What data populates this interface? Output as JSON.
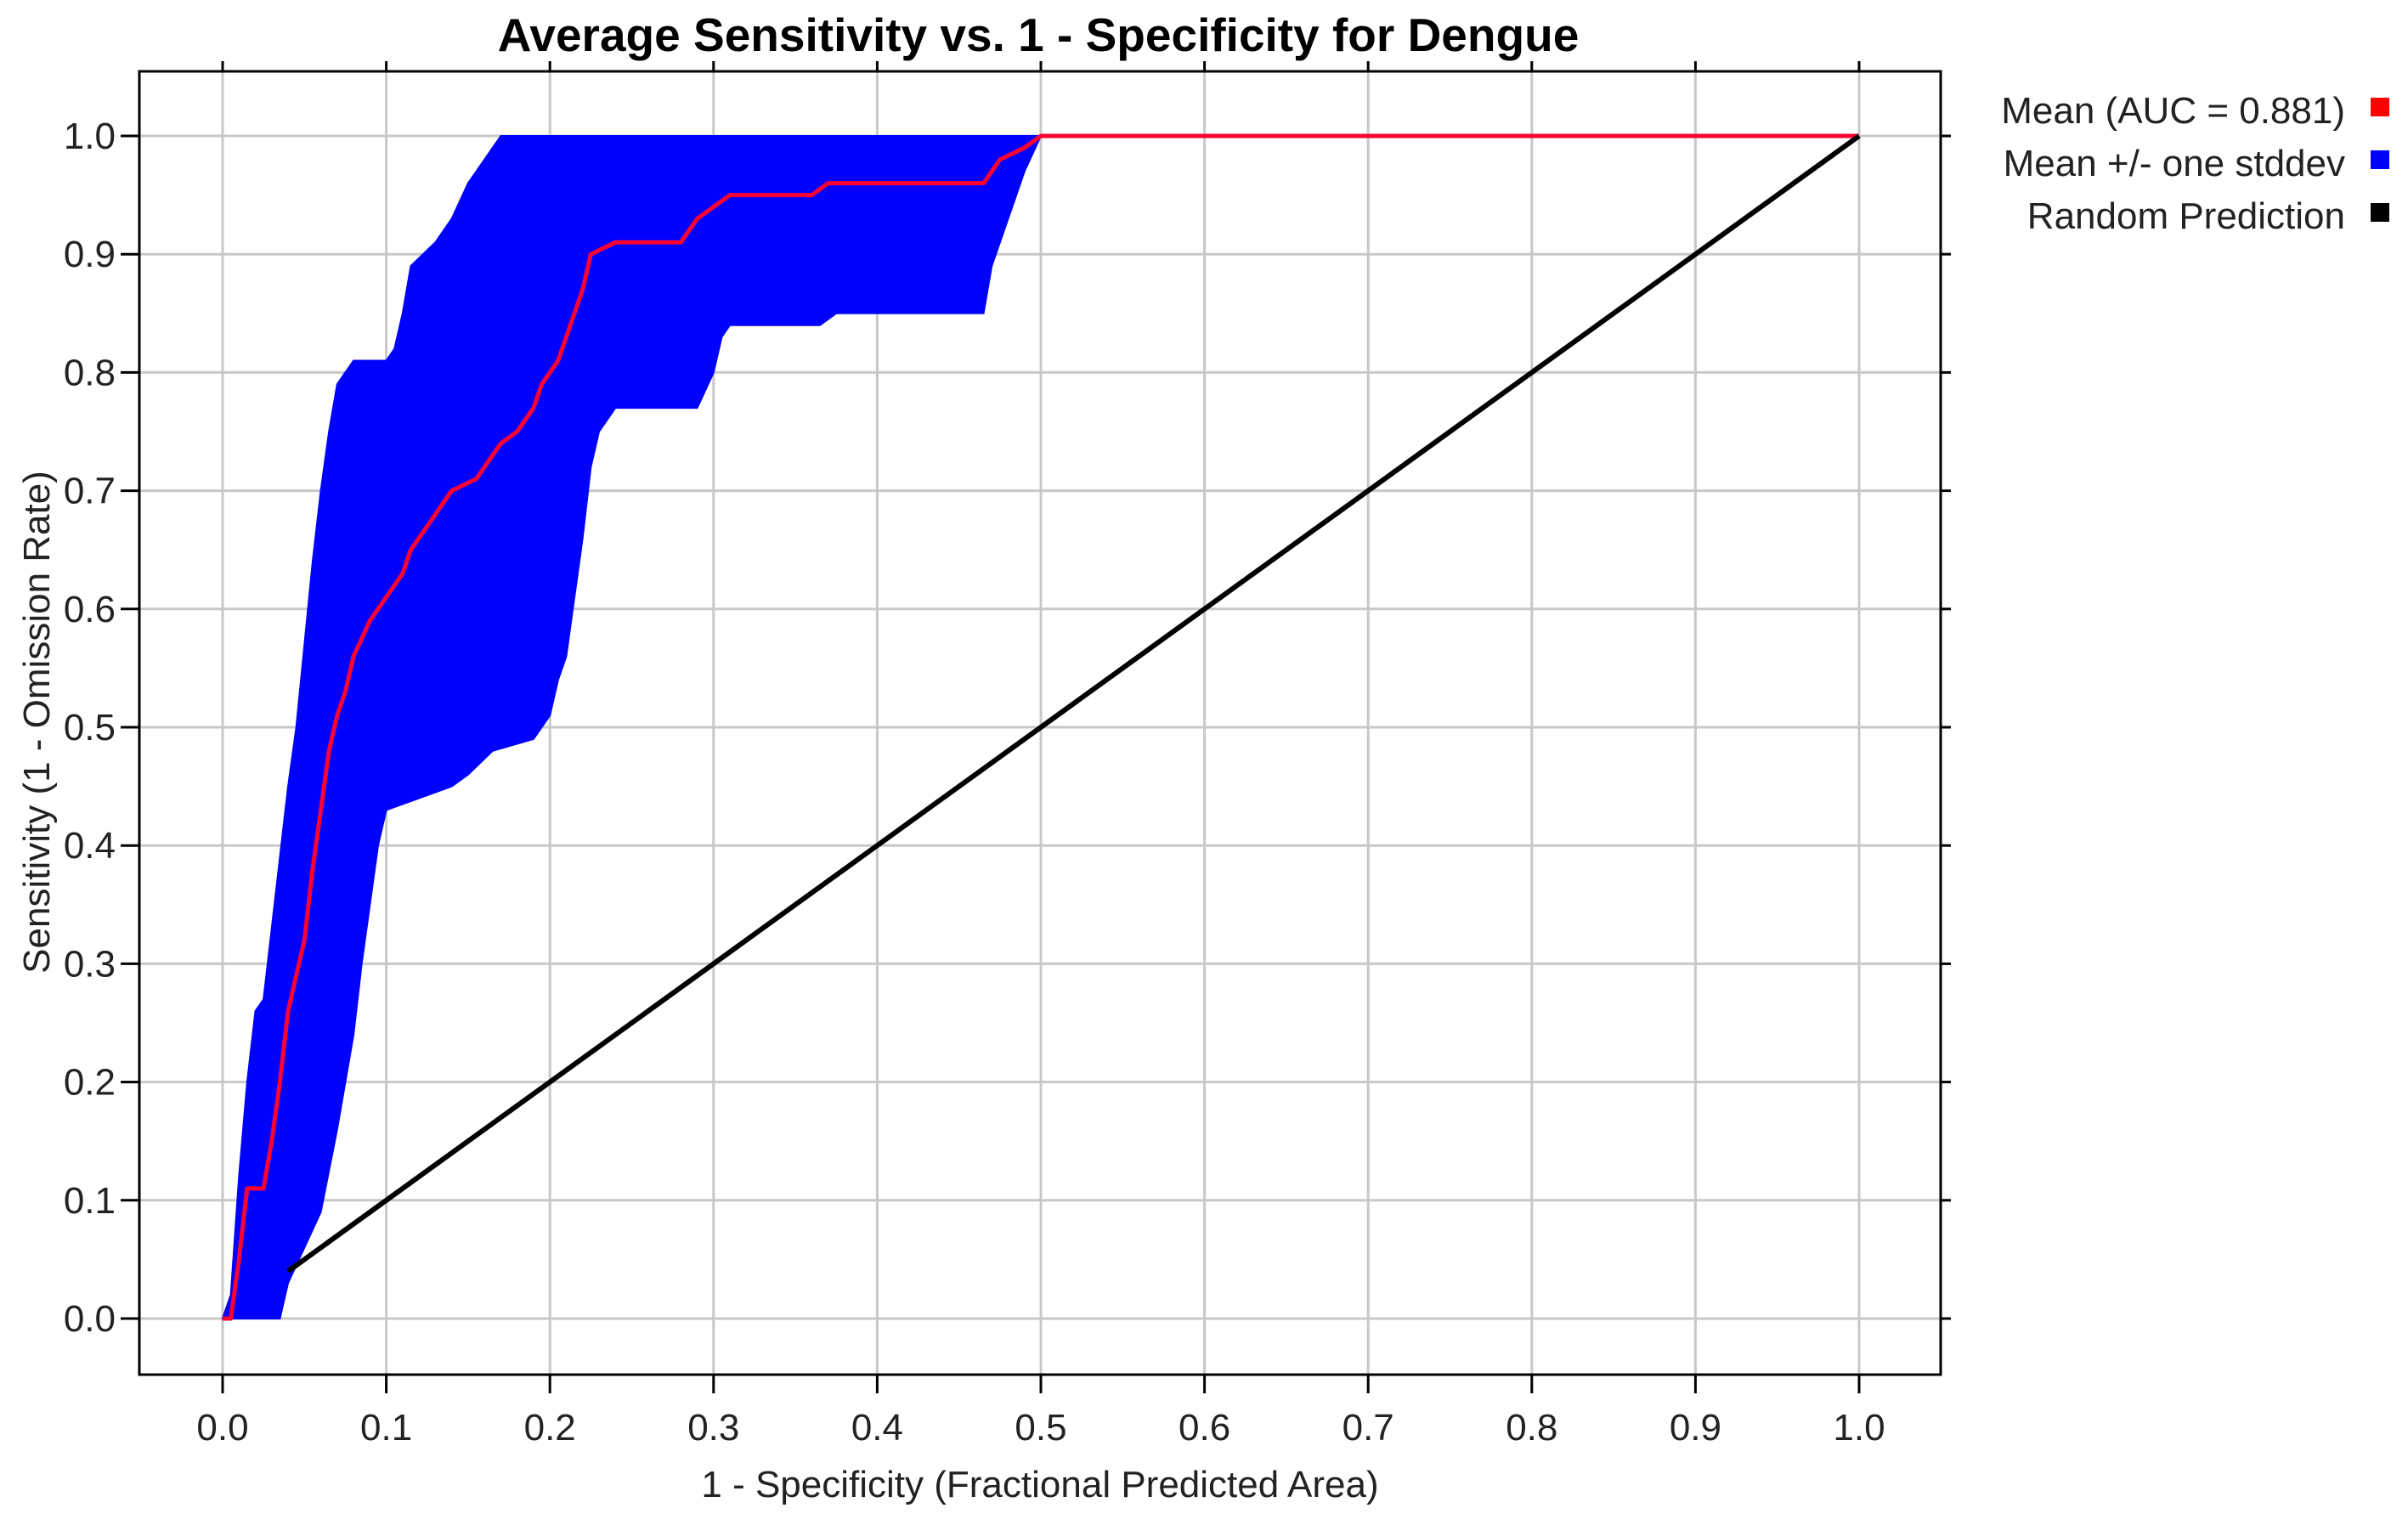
{
  "chart_data": {
    "type": "area",
    "title": "Average Sensitivity vs. 1 - Specificity for Dengue",
    "xlabel": "1 - Specificity (Fractional Predicted Area)",
    "ylabel": "Sensitivity (1 - Omission Rate)",
    "xlim": [
      0.0,
      1.0
    ],
    "ylim": [
      0.0,
      1.0
    ],
    "xticks": [
      "0.0",
      "0.1",
      "0.2",
      "0.3",
      "0.4",
      "0.5",
      "0.6",
      "0.7",
      "0.8",
      "0.9",
      "1.0"
    ],
    "yticks": [
      "0.0",
      "0.1",
      "0.2",
      "0.3",
      "0.4",
      "0.5",
      "0.6",
      "0.7",
      "0.8",
      "0.9",
      "1.0"
    ],
    "grid": true,
    "legend_position": "outside-right-top",
    "legend": [
      {
        "label": "Mean (AUC = 0.881)",
        "color": "#ff0000"
      },
      {
        "label": "Mean +/- one stddev",
        "color": "#0000ff"
      },
      {
        "label": "Random Prediction",
        "color": "#000000"
      }
    ],
    "series": [
      {
        "name": "Mean (AUC = 0.881)",
        "kind": "line",
        "color": "#ff0033",
        "points": [
          [
            0.0,
            0.0
          ],
          [
            0.005,
            0.0
          ],
          [
            0.01,
            0.05
          ],
          [
            0.015,
            0.11
          ],
          [
            0.025,
            0.11
          ],
          [
            0.03,
            0.15
          ],
          [
            0.035,
            0.2
          ],
          [
            0.04,
            0.26
          ],
          [
            0.05,
            0.32
          ],
          [
            0.055,
            0.38
          ],
          [
            0.06,
            0.43
          ],
          [
            0.065,
            0.48
          ],
          [
            0.07,
            0.51
          ],
          [
            0.075,
            0.53
          ],
          [
            0.08,
            0.56
          ],
          [
            0.09,
            0.59
          ],
          [
            0.1,
            0.61
          ],
          [
            0.11,
            0.63
          ],
          [
            0.115,
            0.65
          ],
          [
            0.12,
            0.66
          ],
          [
            0.125,
            0.67
          ],
          [
            0.13,
            0.68
          ],
          [
            0.14,
            0.7
          ],
          [
            0.155,
            0.71
          ],
          [
            0.16,
            0.72
          ],
          [
            0.17,
            0.74
          ],
          [
            0.18,
            0.75
          ],
          [
            0.19,
            0.77
          ],
          [
            0.195,
            0.79
          ],
          [
            0.205,
            0.81
          ],
          [
            0.21,
            0.83
          ],
          [
            0.215,
            0.85
          ],
          [
            0.22,
            0.87
          ],
          [
            0.225,
            0.9
          ],
          [
            0.24,
            0.91
          ],
          [
            0.28,
            0.91
          ],
          [
            0.29,
            0.93
          ],
          [
            0.31,
            0.95
          ],
          [
            0.36,
            0.95
          ],
          [
            0.37,
            0.96
          ],
          [
            0.465,
            0.96
          ],
          [
            0.475,
            0.98
          ],
          [
            0.49,
            0.99
          ],
          [
            0.5,
            1.0
          ],
          [
            0.52,
            1.0
          ],
          [
            1.0,
            1.0
          ]
        ]
      },
      {
        "name": "Mean +/- one stddev",
        "kind": "band",
        "color": "#0000ff",
        "upper": [
          [
            0.0,
            0.0
          ],
          [
            0.005,
            0.02
          ],
          [
            0.01,
            0.12
          ],
          [
            0.015,
            0.2
          ],
          [
            0.02,
            0.26
          ],
          [
            0.025,
            0.27
          ],
          [
            0.03,
            0.33
          ],
          [
            0.04,
            0.45
          ],
          [
            0.045,
            0.5
          ],
          [
            0.05,
            0.57
          ],
          [
            0.055,
            0.64
          ],
          [
            0.06,
            0.7
          ],
          [
            0.065,
            0.75
          ],
          [
            0.07,
            0.79
          ],
          [
            0.08,
            0.81
          ],
          [
            0.1,
            0.81
          ],
          [
            0.105,
            0.82
          ],
          [
            0.11,
            0.85
          ],
          [
            0.115,
            0.89
          ],
          [
            0.13,
            0.91
          ],
          [
            0.14,
            0.93
          ],
          [
            0.15,
            0.96
          ],
          [
            0.165,
            0.99
          ],
          [
            0.17,
            1.0
          ],
          [
            1.0,
            1.0
          ]
        ],
        "lower": [
          [
            0.035,
            0.0
          ],
          [
            0.04,
            0.03
          ],
          [
            0.05,
            0.06
          ],
          [
            0.06,
            0.09
          ],
          [
            0.07,
            0.16
          ],
          [
            0.08,
            0.24
          ],
          [
            0.085,
            0.3
          ],
          [
            0.09,
            0.35
          ],
          [
            0.095,
            0.4
          ],
          [
            0.1,
            0.43
          ],
          [
            0.12,
            0.44
          ],
          [
            0.14,
            0.45
          ],
          [
            0.15,
            0.46
          ],
          [
            0.165,
            0.48
          ],
          [
            0.19,
            0.49
          ],
          [
            0.2,
            0.51
          ],
          [
            0.205,
            0.54
          ],
          [
            0.21,
            0.56
          ],
          [
            0.215,
            0.61
          ],
          [
            0.22,
            0.66
          ],
          [
            0.225,
            0.72
          ],
          [
            0.23,
            0.75
          ],
          [
            0.24,
            0.77
          ],
          [
            0.29,
            0.77
          ],
          [
            0.3,
            0.8
          ],
          [
            0.305,
            0.83
          ],
          [
            0.31,
            0.84
          ],
          [
            0.365,
            0.84
          ],
          [
            0.375,
            0.85
          ],
          [
            0.465,
            0.85
          ],
          [
            0.47,
            0.89
          ],
          [
            0.48,
            0.93
          ],
          [
            0.49,
            0.97
          ],
          [
            0.5,
            1.0
          ],
          [
            1.0,
            1.0
          ]
        ]
      },
      {
        "name": "Random Prediction",
        "kind": "line",
        "color": "#000000",
        "points": [
          [
            0.04,
            0.04
          ],
          [
            1.0,
            1.0
          ]
        ]
      }
    ]
  }
}
